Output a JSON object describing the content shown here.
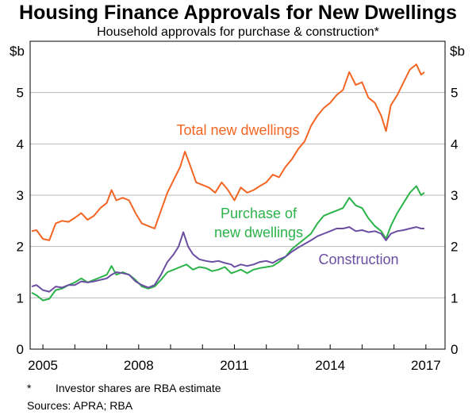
{
  "chart_data": {
    "type": "line",
    "title": "Housing Finance Approvals for New Dwellings",
    "subtitle": "Household approvals for purchase & construction*",
    "unit_left": "$b",
    "unit_right": "$b",
    "ylim": [
      0,
      6
    ],
    "y_ticks": [
      "0",
      "1",
      "2",
      "3",
      "4",
      "5"
    ],
    "xlim": [
      2004.6,
      2017.6
    ],
    "x_ticks": [
      "2005",
      "2008",
      "2011",
      "2014",
      "2017"
    ],
    "footnote_marker": "*",
    "footnote": "Investor shares are RBA estimate",
    "sources": "Sources: APRA; RBA",
    "colors": {
      "total": "#f26522",
      "purchase": "#2bb34a",
      "construction": "#6b4ea2"
    },
    "series": [
      {
        "name": "Total new dwellings",
        "key": "total",
        "label": "Total new dwellings",
        "points": [
          [
            2004.65,
            2.3
          ],
          [
            2004.8,
            2.32
          ],
          [
            2005.0,
            2.15
          ],
          [
            2005.2,
            2.12
          ],
          [
            2005.4,
            2.45
          ],
          [
            2005.6,
            2.5
          ],
          [
            2005.8,
            2.48
          ],
          [
            2006.0,
            2.56
          ],
          [
            2006.2,
            2.65
          ],
          [
            2006.4,
            2.52
          ],
          [
            2006.6,
            2.6
          ],
          [
            2006.8,
            2.75
          ],
          [
            2007.0,
            2.85
          ],
          [
            2007.15,
            3.1
          ],
          [
            2007.3,
            2.9
          ],
          [
            2007.5,
            2.95
          ],
          [
            2007.7,
            2.9
          ],
          [
            2007.9,
            2.65
          ],
          [
            2008.1,
            2.45
          ],
          [
            2008.3,
            2.4
          ],
          [
            2008.5,
            2.35
          ],
          [
            2008.7,
            2.7
          ],
          [
            2008.9,
            3.05
          ],
          [
            2009.1,
            3.3
          ],
          [
            2009.3,
            3.55
          ],
          [
            2009.45,
            3.85
          ],
          [
            2009.6,
            3.6
          ],
          [
            2009.8,
            3.25
          ],
          [
            2010.0,
            3.2
          ],
          [
            2010.2,
            3.15
          ],
          [
            2010.4,
            3.05
          ],
          [
            2010.6,
            3.25
          ],
          [
            2010.8,
            3.1
          ],
          [
            2011.0,
            2.9
          ],
          [
            2011.2,
            3.15
          ],
          [
            2011.4,
            3.05
          ],
          [
            2011.6,
            3.1
          ],
          [
            2011.8,
            3.18
          ],
          [
            2012.0,
            3.25
          ],
          [
            2012.2,
            3.4
          ],
          [
            2012.4,
            3.35
          ],
          [
            2012.6,
            3.55
          ],
          [
            2012.8,
            3.7
          ],
          [
            2013.0,
            3.9
          ],
          [
            2013.2,
            4.05
          ],
          [
            2013.4,
            4.35
          ],
          [
            2013.6,
            4.55
          ],
          [
            2013.8,
            4.7
          ],
          [
            2014.0,
            4.8
          ],
          [
            2014.2,
            4.95
          ],
          [
            2014.4,
            5.05
          ],
          [
            2014.6,
            5.4
          ],
          [
            2014.8,
            5.15
          ],
          [
            2015.0,
            5.2
          ],
          [
            2015.2,
            4.9
          ],
          [
            2015.4,
            4.8
          ],
          [
            2015.6,
            4.55
          ],
          [
            2015.75,
            4.25
          ],
          [
            2015.9,
            4.75
          ],
          [
            2016.1,
            4.95
          ],
          [
            2016.3,
            5.2
          ],
          [
            2016.5,
            5.45
          ],
          [
            2016.7,
            5.55
          ],
          [
            2016.85,
            5.35
          ],
          [
            2016.95,
            5.4
          ]
        ]
      },
      {
        "name": "Purchase of new dwellings",
        "key": "purchase",
        "label": "Purchase of",
        "label2": "new dwellings",
        "points": [
          [
            2004.65,
            1.1
          ],
          [
            2004.8,
            1.05
          ],
          [
            2005.0,
            0.95
          ],
          [
            2005.2,
            0.98
          ],
          [
            2005.4,
            1.15
          ],
          [
            2005.6,
            1.18
          ],
          [
            2005.8,
            1.25
          ],
          [
            2006.0,
            1.3
          ],
          [
            2006.2,
            1.38
          ],
          [
            2006.4,
            1.3
          ],
          [
            2006.6,
            1.35
          ],
          [
            2006.8,
            1.4
          ],
          [
            2007.0,
            1.45
          ],
          [
            2007.15,
            1.62
          ],
          [
            2007.3,
            1.45
          ],
          [
            2007.5,
            1.5
          ],
          [
            2007.7,
            1.45
          ],
          [
            2007.9,
            1.35
          ],
          [
            2008.1,
            1.22
          ],
          [
            2008.3,
            1.18
          ],
          [
            2008.5,
            1.22
          ],
          [
            2008.7,
            1.35
          ],
          [
            2008.9,
            1.5
          ],
          [
            2009.1,
            1.55
          ],
          [
            2009.3,
            1.6
          ],
          [
            2009.5,
            1.65
          ],
          [
            2009.7,
            1.55
          ],
          [
            2009.9,
            1.6
          ],
          [
            2010.1,
            1.58
          ],
          [
            2010.3,
            1.52
          ],
          [
            2010.5,
            1.55
          ],
          [
            2010.7,
            1.6
          ],
          [
            2010.9,
            1.48
          ],
          [
            2011.0,
            1.5
          ],
          [
            2011.2,
            1.55
          ],
          [
            2011.4,
            1.48
          ],
          [
            2011.6,
            1.55
          ],
          [
            2011.8,
            1.58
          ],
          [
            2012.0,
            1.6
          ],
          [
            2012.2,
            1.62
          ],
          [
            2012.4,
            1.7
          ],
          [
            2012.6,
            1.8
          ],
          [
            2012.8,
            1.95
          ],
          [
            2013.0,
            2.05
          ],
          [
            2013.2,
            2.15
          ],
          [
            2013.4,
            2.25
          ],
          [
            2013.6,
            2.45
          ],
          [
            2013.8,
            2.6
          ],
          [
            2014.0,
            2.65
          ],
          [
            2014.2,
            2.7
          ],
          [
            2014.4,
            2.75
          ],
          [
            2014.6,
            2.95
          ],
          [
            2014.8,
            2.8
          ],
          [
            2015.0,
            2.75
          ],
          [
            2015.2,
            2.55
          ],
          [
            2015.4,
            2.4
          ],
          [
            2015.6,
            2.3
          ],
          [
            2015.75,
            2.15
          ],
          [
            2015.9,
            2.4
          ],
          [
            2016.1,
            2.65
          ],
          [
            2016.3,
            2.85
          ],
          [
            2016.5,
            3.05
          ],
          [
            2016.7,
            3.18
          ],
          [
            2016.85,
            3.0
          ],
          [
            2016.95,
            3.05
          ]
        ]
      },
      {
        "name": "Construction",
        "key": "construction",
        "label": "Construction",
        "points": [
          [
            2004.65,
            1.22
          ],
          [
            2004.8,
            1.25
          ],
          [
            2005.0,
            1.15
          ],
          [
            2005.2,
            1.12
          ],
          [
            2005.4,
            1.22
          ],
          [
            2005.6,
            1.2
          ],
          [
            2005.8,
            1.25
          ],
          [
            2006.0,
            1.25
          ],
          [
            2006.2,
            1.32
          ],
          [
            2006.4,
            1.3
          ],
          [
            2006.6,
            1.32
          ],
          [
            2006.8,
            1.35
          ],
          [
            2007.0,
            1.38
          ],
          [
            2007.15,
            1.45
          ],
          [
            2007.3,
            1.5
          ],
          [
            2007.5,
            1.48
          ],
          [
            2007.7,
            1.45
          ],
          [
            2007.9,
            1.32
          ],
          [
            2008.1,
            1.25
          ],
          [
            2008.3,
            1.2
          ],
          [
            2008.5,
            1.25
          ],
          [
            2008.7,
            1.45
          ],
          [
            2008.9,
            1.7
          ],
          [
            2009.1,
            1.85
          ],
          [
            2009.25,
            2.0
          ],
          [
            2009.4,
            2.28
          ],
          [
            2009.55,
            2.0
          ],
          [
            2009.7,
            1.85
          ],
          [
            2009.9,
            1.75
          ],
          [
            2010.1,
            1.72
          ],
          [
            2010.3,
            1.7
          ],
          [
            2010.5,
            1.72
          ],
          [
            2010.7,
            1.68
          ],
          [
            2010.9,
            1.65
          ],
          [
            2011.0,
            1.6
          ],
          [
            2011.2,
            1.65
          ],
          [
            2011.4,
            1.62
          ],
          [
            2011.6,
            1.65
          ],
          [
            2011.8,
            1.7
          ],
          [
            2012.0,
            1.72
          ],
          [
            2012.2,
            1.68
          ],
          [
            2012.4,
            1.75
          ],
          [
            2012.6,
            1.8
          ],
          [
            2012.8,
            1.9
          ],
          [
            2013.0,
            1.98
          ],
          [
            2013.2,
            2.05
          ],
          [
            2013.4,
            2.12
          ],
          [
            2013.6,
            2.2
          ],
          [
            2013.8,
            2.25
          ],
          [
            2014.0,
            2.3
          ],
          [
            2014.2,
            2.35
          ],
          [
            2014.4,
            2.35
          ],
          [
            2014.6,
            2.38
          ],
          [
            2014.8,
            2.3
          ],
          [
            2015.0,
            2.32
          ],
          [
            2015.2,
            2.28
          ],
          [
            2015.4,
            2.3
          ],
          [
            2015.6,
            2.25
          ],
          [
            2015.75,
            2.12
          ],
          [
            2015.9,
            2.25
          ],
          [
            2016.1,
            2.3
          ],
          [
            2016.3,
            2.32
          ],
          [
            2016.5,
            2.35
          ],
          [
            2016.7,
            2.38
          ],
          [
            2016.85,
            2.35
          ],
          [
            2016.95,
            2.35
          ]
        ]
      }
    ]
  }
}
